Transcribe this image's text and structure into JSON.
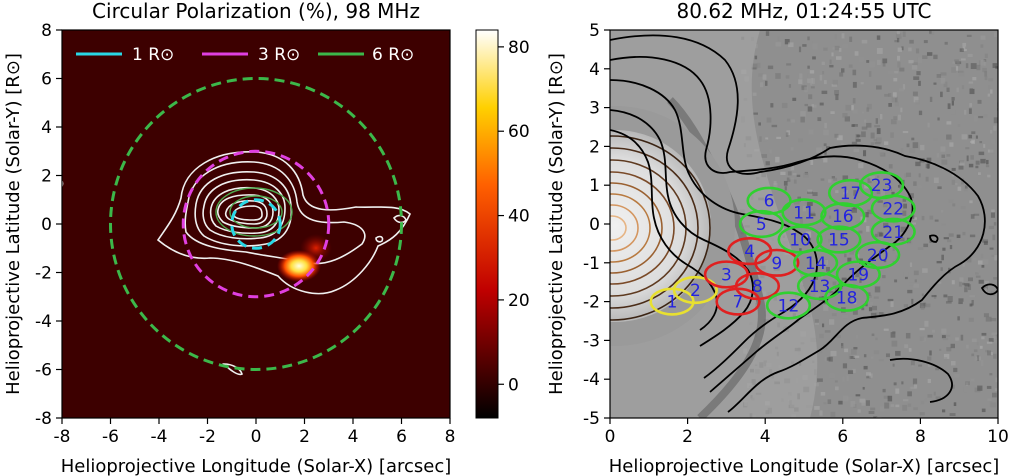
{
  "chart_data": [
    {
      "type": "heatmap",
      "title": "Circular Polarization (%), 98 MHz",
      "xlabel": "Helioprojective Longitude (Solar-X) [arcsec]",
      "ylabel": "Helioprojective Latitude (Solar-Y) [R⊙]",
      "xlim": [
        -8,
        8
      ],
      "ylim": [
        -8,
        8
      ],
      "xticks": [
        "-8",
        "-6",
        "-4",
        "-2",
        "0",
        "2",
        "4",
        "6",
        "8"
      ],
      "yticks": [
        "-8",
        "-6",
        "-4",
        "-2",
        "0",
        "2",
        "4",
        "6",
        "8"
      ],
      "background_color": "#3d0000",
      "colorbar": {
        "ticks": [
          "80",
          "60",
          "40",
          "20",
          "0"
        ],
        "tick_values": [
          80,
          60,
          40,
          20,
          0
        ],
        "range": [
          -8,
          84
        ],
        "colormap": "hot"
      },
      "legend": [
        {
          "label": "1 R⊙",
          "color": "#29d8e6",
          "radius": 1
        },
        {
          "label": "3 R⊙",
          "color": "#e040e0",
          "radius": 3
        },
        {
          "label": "6 R⊙",
          "color": "#3cb84a",
          "radius": 6
        }
      ],
      "legend_loc": "top",
      "polarization_peak": {
        "x": 1.9,
        "y": -1.7,
        "value": 84
      }
    },
    {
      "type": "scatter",
      "title": "80.62 MHz, 01:24:55 UTC",
      "xlabel": "Helioprojective Longitude (Solar-X) [arcsec]",
      "ylabel": "Helioprojective Latitude (Solar-Y) [R⊙]",
      "xlim": [
        0,
        10
      ],
      "ylim": [
        -5,
        5
      ],
      "xticks": [
        "0",
        "2",
        "4",
        "6",
        "8",
        "10"
      ],
      "yticks": [
        "5",
        "4",
        "3",
        "2",
        "1",
        "0",
        "-1",
        "-2",
        "-3",
        "-4",
        "-5"
      ],
      "background": "grayscale difference image",
      "regions": [
        {
          "label": "1",
          "x": 1.6,
          "y": -2.0,
          "color": "#e8e030"
        },
        {
          "label": "2",
          "x": 2.2,
          "y": -1.7,
          "color": "#e8e030"
        },
        {
          "label": "3",
          "x": 3.0,
          "y": -1.3,
          "color": "#e02020"
        },
        {
          "label": "4",
          "x": 3.6,
          "y": -0.7,
          "color": "#e02020"
        },
        {
          "label": "7",
          "x": 3.3,
          "y": -2.0,
          "color": "#e02020"
        },
        {
          "label": "8",
          "x": 3.8,
          "y": -1.6,
          "color": "#e02020"
        },
        {
          "label": "9",
          "x": 4.3,
          "y": -1.0,
          "color": "#e02020"
        },
        {
          "label": "5",
          "x": 3.9,
          "y": 0.0,
          "color": "#30d030"
        },
        {
          "label": "6",
          "x": 4.1,
          "y": 0.6,
          "color": "#30d030"
        },
        {
          "label": "10",
          "x": 4.9,
          "y": -0.4,
          "color": "#30d030"
        },
        {
          "label": "11",
          "x": 5.0,
          "y": 0.3,
          "color": "#30d030"
        },
        {
          "label": "12",
          "x": 4.6,
          "y": -2.1,
          "color": "#30d030"
        },
        {
          "label": "13",
          "x": 5.4,
          "y": -1.6,
          "color": "#30d030"
        },
        {
          "label": "14",
          "x": 5.3,
          "y": -1.0,
          "color": "#30d030"
        },
        {
          "label": "15",
          "x": 5.9,
          "y": -0.4,
          "color": "#30d030"
        },
        {
          "label": "16",
          "x": 6.0,
          "y": 0.2,
          "color": "#30d030"
        },
        {
          "label": "17",
          "x": 6.2,
          "y": 0.8,
          "color": "#30d030"
        },
        {
          "label": "18",
          "x": 6.1,
          "y": -1.9,
          "color": "#30d030"
        },
        {
          "label": "19",
          "x": 6.4,
          "y": -1.3,
          "color": "#30d030"
        },
        {
          "label": "20",
          "x": 6.9,
          "y": -0.8,
          "color": "#30d030"
        },
        {
          "label": "21",
          "x": 7.3,
          "y": -0.2,
          "color": "#30d030"
        },
        {
          "label": "22",
          "x": 7.3,
          "y": 0.4,
          "color": "#30d030"
        },
        {
          "label": "23",
          "x": 7.0,
          "y": 1.0,
          "color": "#30d030"
        }
      ]
    }
  ]
}
